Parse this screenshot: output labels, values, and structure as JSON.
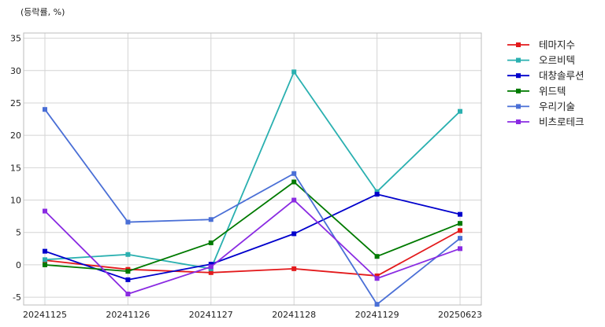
{
  "chart_data": {
    "type": "line",
    "unit_label": "(등락률, %)",
    "categories": [
      "20241125",
      "20241126",
      "20241127",
      "20241128",
      "20241129",
      "20250623"
    ],
    "yticks": [
      -5,
      0,
      5,
      10,
      15,
      20,
      25,
      30,
      35
    ],
    "ylim": [
      -6.2,
      35.8
    ],
    "grid": true,
    "legend_position": "top-right outside",
    "series": [
      {
        "name": "테마지수",
        "color": "#e31a1c",
        "values": [
          0.7,
          -0.7,
          -1.2,
          -0.6,
          -1.7,
          5.3
        ]
      },
      {
        "name": "오르비텍",
        "color": "#2ab0b0",
        "values": [
          0.8,
          1.6,
          -0.6,
          29.8,
          11.3,
          23.7
        ]
      },
      {
        "name": "대창솔루션",
        "color": "#0000cc",
        "values": [
          2.1,
          -2.3,
          0.1,
          4.8,
          10.9,
          7.8
        ]
      },
      {
        "name": "위드텍",
        "color": "#007a00",
        "values": [
          0.0,
          -1.0,
          3.4,
          12.8,
          1.3,
          6.4
        ]
      },
      {
        "name": "우리기술",
        "color": "#4a6fd6",
        "values": [
          24.0,
          6.6,
          7.0,
          14.1,
          -6.1,
          4.1
        ]
      },
      {
        "name": "비츠로테크",
        "color": "#8a2be2",
        "values": [
          8.3,
          -4.5,
          -0.3,
          10.0,
          -2.1,
          2.5
        ]
      }
    ]
  }
}
